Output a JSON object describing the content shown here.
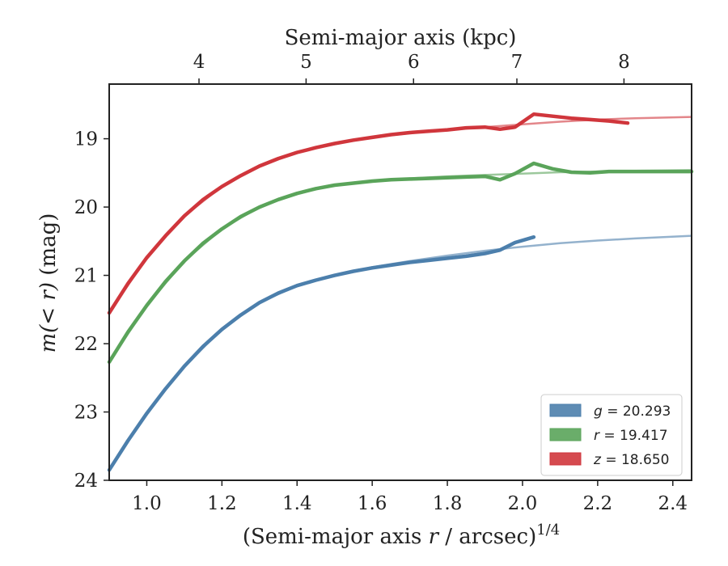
{
  "chart_data": {
    "type": "line",
    "xlabel": "(Semi-major axis r / arcsec)",
    "xlabel_italic_var": "r",
    "xlabel_prefix": "(Semi-major axis ",
    "xlabel_suffix": " / arcsec)",
    "xlabel_sup": "1/4",
    "ylabel": "m(< r) (mag)",
    "ylabel_math": "m(< r)",
    "ylabel_unit": " (mag)",
    "top_xlabel": "Semi-major axis (kpc)",
    "xlim": [
      0.9,
      2.45
    ],
    "ylim": [
      24.0,
      18.2
    ],
    "y_inverted": true,
    "x_ticks": [
      1.0,
      1.2,
      1.4,
      1.6,
      1.8,
      2.0,
      2.2,
      2.4
    ],
    "x_tick_labels": [
      "1.0",
      "1.2",
      "1.4",
      "1.6",
      "1.8",
      "2.0",
      "2.2",
      "2.4"
    ],
    "y_ticks": [
      19,
      20,
      21,
      22,
      23,
      24
    ],
    "y_tick_labels": [
      "19",
      "20",
      "21",
      "22",
      "23",
      "24"
    ],
    "top_ticks_kpc": [
      4,
      5,
      6,
      7,
      8
    ],
    "top_tick_labels": [
      "4",
      "5",
      "6",
      "7",
      "8"
    ],
    "top_tick_x_positions": [
      1.139,
      1.424,
      1.71,
      1.985,
      2.27
    ],
    "grid": false,
    "legend_placement": "lower-right",
    "series": [
      {
        "name": "g = 20.293",
        "legend_var": "g",
        "legend_value": "= 20.293",
        "color": "#4c7fac",
        "x": [
          0.9,
          0.95,
          1.0,
          1.05,
          1.1,
          1.15,
          1.2,
          1.25,
          1.3,
          1.35,
          1.4,
          1.45,
          1.5,
          1.55,
          1.6,
          1.65,
          1.7,
          1.75,
          1.8,
          1.85,
          1.9,
          1.94,
          1.98,
          2.03
        ],
        "y": [
          23.85,
          23.42,
          23.02,
          22.66,
          22.33,
          22.04,
          21.79,
          21.58,
          21.4,
          21.26,
          21.15,
          21.07,
          21.0,
          20.94,
          20.89,
          20.85,
          20.81,
          20.78,
          20.75,
          20.72,
          20.68,
          20.63,
          20.52,
          20.44
        ],
        "fit_x": [
          0.9,
          1.0,
          1.1,
          1.2,
          1.3,
          1.4,
          1.5,
          1.6,
          1.7,
          1.8,
          1.9,
          2.0,
          2.1,
          2.2,
          2.3,
          2.45
        ],
        "fit_y": [
          23.85,
          23.02,
          22.33,
          21.79,
          21.4,
          21.15,
          21.0,
          20.88,
          20.79,
          20.71,
          20.64,
          20.58,
          20.53,
          20.49,
          20.46,
          20.42
        ]
      },
      {
        "name": "r = 19.417",
        "legend_var": "r",
        "legend_value": "= 19.417",
        "color": "#5aa45a",
        "x": [
          0.9,
          0.95,
          1.0,
          1.05,
          1.1,
          1.15,
          1.2,
          1.25,
          1.3,
          1.35,
          1.4,
          1.45,
          1.5,
          1.55,
          1.6,
          1.65,
          1.7,
          1.75,
          1.8,
          1.85,
          1.9,
          1.94,
          1.98,
          2.03,
          2.08,
          2.13,
          2.18,
          2.23,
          2.3,
          2.38,
          2.45
        ],
        "y": [
          22.27,
          21.83,
          21.44,
          21.09,
          20.79,
          20.53,
          20.32,
          20.14,
          20.0,
          19.89,
          19.8,
          19.73,
          19.68,
          19.65,
          19.62,
          19.6,
          19.59,
          19.58,
          19.57,
          19.56,
          19.55,
          19.6,
          19.51,
          19.36,
          19.44,
          19.49,
          19.5,
          19.48,
          19.48,
          19.48,
          19.48
        ],
        "fit_x": [
          0.9,
          1.0,
          1.1,
          1.2,
          1.3,
          1.4,
          1.5,
          1.6,
          1.7,
          1.8,
          1.9,
          2.0,
          2.1,
          2.2,
          2.3,
          2.45
        ],
        "fit_y": [
          22.27,
          21.44,
          20.79,
          20.32,
          20.0,
          19.8,
          19.68,
          19.62,
          19.58,
          19.55,
          19.53,
          19.51,
          19.49,
          19.48,
          19.47,
          19.46
        ]
      },
      {
        "name": "z = 18.650",
        "legend_var": "z",
        "legend_value": "= 18.650",
        "color": "#d0363c",
        "x": [
          0.9,
          0.95,
          1.0,
          1.05,
          1.1,
          1.15,
          1.2,
          1.25,
          1.3,
          1.35,
          1.4,
          1.45,
          1.5,
          1.55,
          1.6,
          1.65,
          1.7,
          1.75,
          1.8,
          1.85,
          1.9,
          1.94,
          1.98,
          2.03,
          2.08,
          2.13,
          2.18,
          2.23,
          2.28
        ],
        "y": [
          21.55,
          21.12,
          20.74,
          20.42,
          20.13,
          19.89,
          19.7,
          19.54,
          19.4,
          19.29,
          19.2,
          19.13,
          19.07,
          19.02,
          18.98,
          18.94,
          18.91,
          18.89,
          18.87,
          18.84,
          18.83,
          18.86,
          18.83,
          18.64,
          18.67,
          18.7,
          18.72,
          18.74,
          18.77
        ],
        "fit_x": [
          0.9,
          1.0,
          1.1,
          1.2,
          1.3,
          1.4,
          1.5,
          1.6,
          1.7,
          1.8,
          1.9,
          2.0,
          2.1,
          2.2,
          2.3,
          2.45
        ],
        "fit_y": [
          21.55,
          20.74,
          20.13,
          19.7,
          19.4,
          19.2,
          19.07,
          18.98,
          18.92,
          18.87,
          18.83,
          18.79,
          18.75,
          18.72,
          18.7,
          18.68
        ]
      }
    ]
  }
}
